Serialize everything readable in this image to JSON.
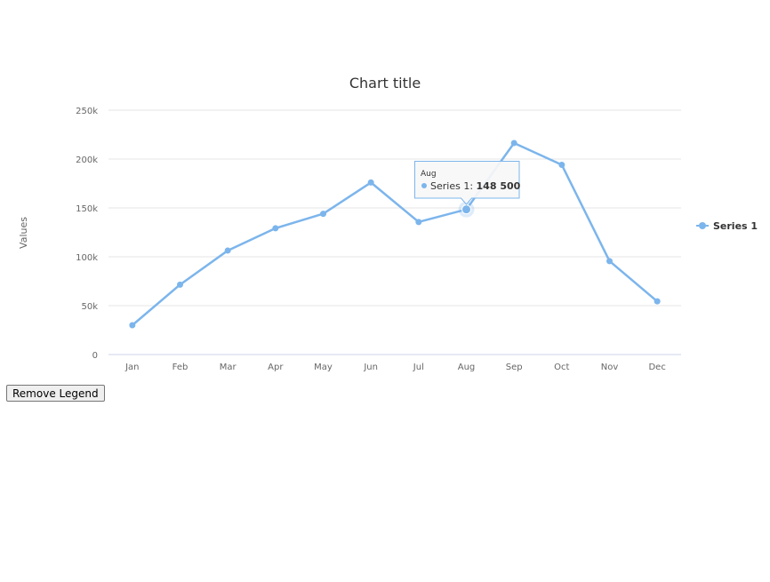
{
  "chart_data": {
    "type": "line",
    "title": "Chart title",
    "xlabel": "",
    "ylabel": "Values",
    "categories": [
      "Jan",
      "Feb",
      "Mar",
      "Apr",
      "May",
      "Jun",
      "Jul",
      "Aug",
      "Sep",
      "Oct",
      "Nov",
      "Dec"
    ],
    "series": [
      {
        "name": "Series 1",
        "color": "#7cb5ec",
        "values": [
          30000,
          71500,
          106400,
          129200,
          144000,
          176000,
          135600,
          148500,
          216400,
          194100,
          95600,
          54400
        ]
      }
    ],
    "yticks": [
      0,
      50000,
      100000,
      150000,
      200000,
      250000
    ],
    "ytick_labels": [
      "0",
      "50k",
      "100k",
      "150k",
      "200k",
      "250k"
    ],
    "ylim": [
      0,
      250000
    ],
    "grid": true,
    "legend_position": "right",
    "tooltip": {
      "category": "Aug",
      "series_label": "Series 1: ",
      "value_text": "148 500"
    }
  },
  "controls": {
    "remove_legend_label": "Remove Legend"
  }
}
